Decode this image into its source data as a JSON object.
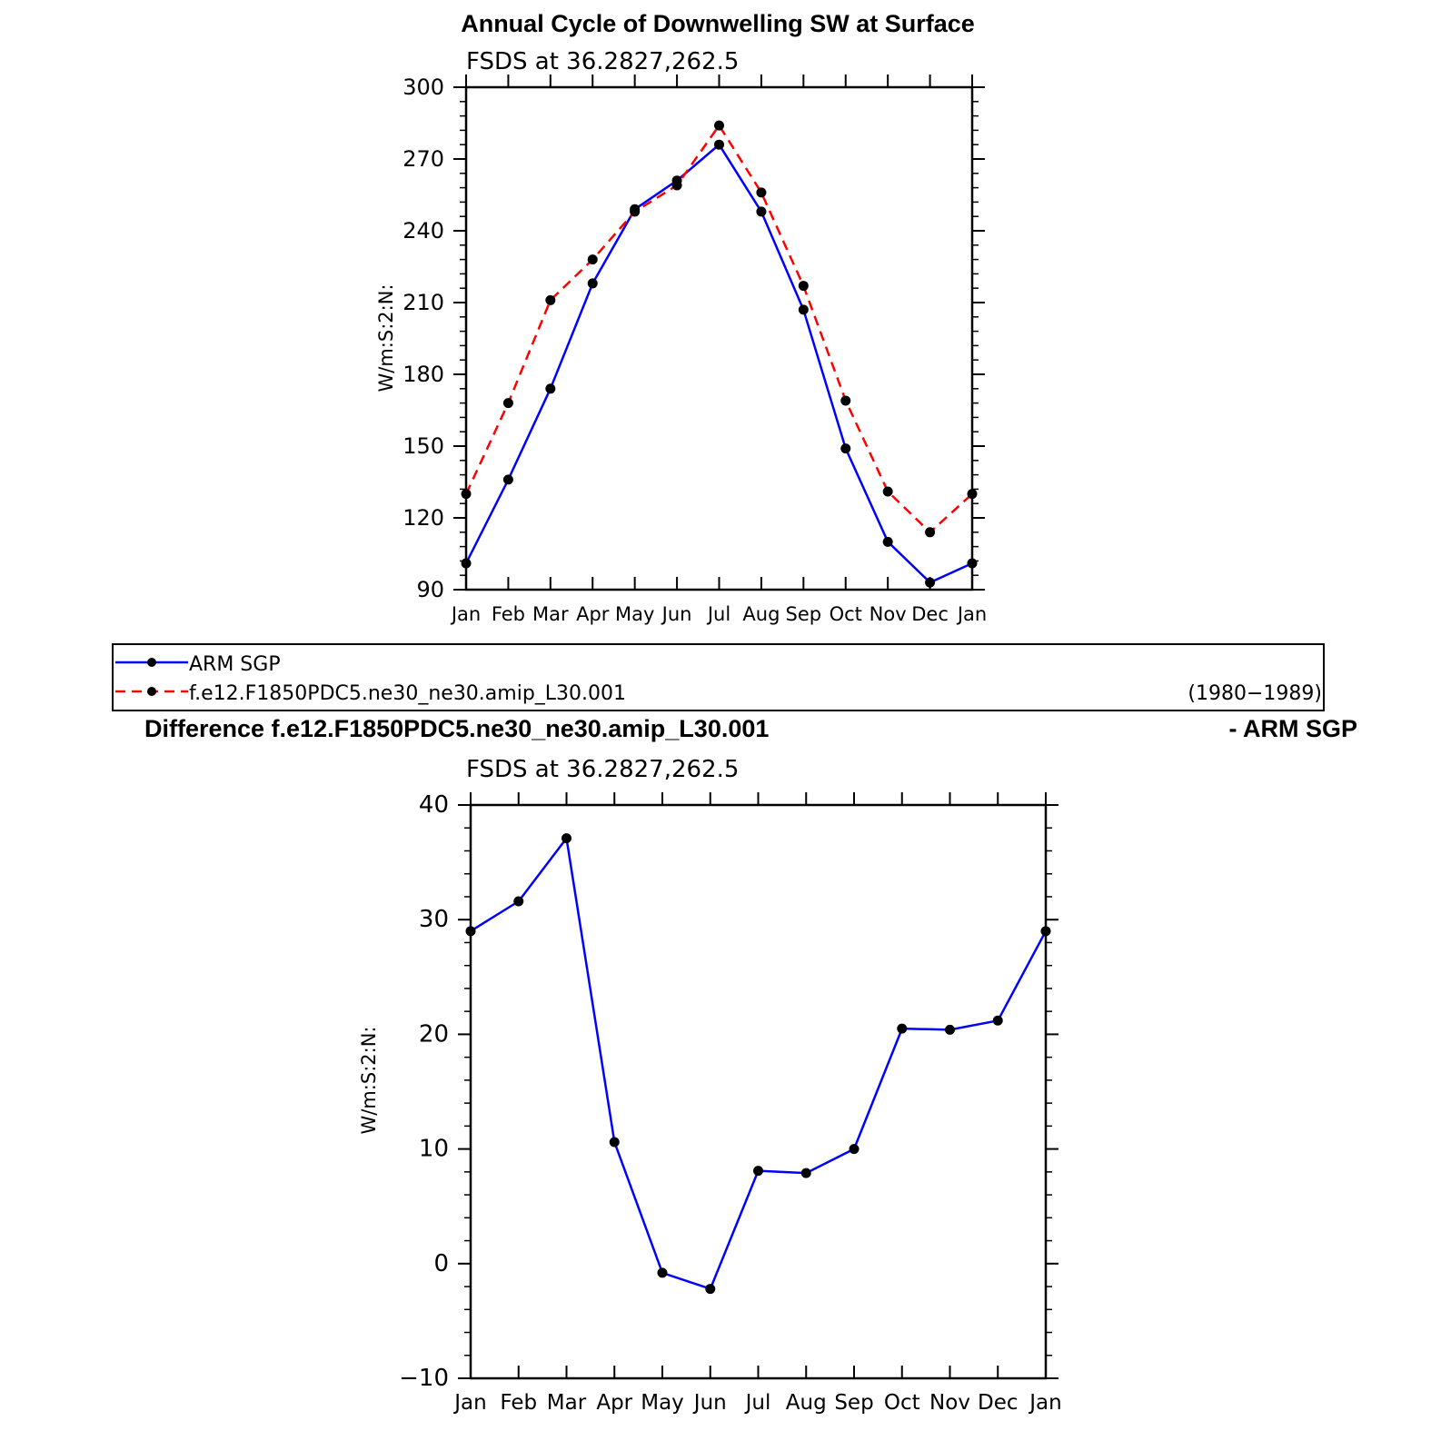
{
  "chart_data": [
    {
      "type": "line",
      "title": "Annual Cycle of Downwelling SW at Surface",
      "subtitle": "FSDS at 36.2827,262.5",
      "xlabel": "",
      "ylabel": "W/m:S:2:N:",
      "categories": [
        "Jan",
        "Feb",
        "Mar",
        "Apr",
        "May",
        "Jun",
        "Jul",
        "Aug",
        "Sep",
        "Oct",
        "Nov",
        "Dec",
        "Jan"
      ],
      "ylim": [
        90,
        300
      ],
      "yticks": [
        "90",
        "120",
        "150",
        "180",
        "210",
        "240",
        "270",
        "300"
      ],
      "grid": false,
      "series": [
        {
          "name": "ARM SGP",
          "color": "#0000ff",
          "dash": "solid",
          "values": [
            101,
            136,
            174,
            218,
            249,
            261,
            276,
            248,
            207,
            149,
            110,
            93,
            101
          ]
        },
        {
          "name": "f.e12.F1850PDC5.ne30_ne30.amip_L30.001",
          "color": "#ff0000",
          "dash": "dashed",
          "values": [
            130,
            168,
            211,
            228,
            248,
            259,
            284,
            256,
            217,
            169,
            131,
            114,
            130
          ]
        }
      ],
      "legend": {
        "placement": "below",
        "entries": [
          "ARM SGP",
          "f.e12.F1850PDC5.ne30_ne30.amip_L30.001"
        ],
        "note": "(1980−1989)"
      }
    },
    {
      "type": "line",
      "title_left": "Difference f.e12.F1850PDC5.ne30_ne30.amip_L30.001",
      "title_right": "- ARM SGP",
      "subtitle": "FSDS at 36.2827,262.5",
      "xlabel": "",
      "ylabel": "W/m:S:2:N:",
      "categories": [
        "Jan",
        "Feb",
        "Mar",
        "Apr",
        "May",
        "Jun",
        "Jul",
        "Aug",
        "Sep",
        "Oct",
        "Nov",
        "Dec",
        "Jan"
      ],
      "ylim": [
        -10,
        40
      ],
      "yticks": [
        "−10",
        "0",
        "10",
        "20",
        "30",
        "40"
      ],
      "grid": false,
      "series": [
        {
          "name": "",
          "color": "#0000ff",
          "dash": "solid",
          "values": [
            29,
            31.6,
            37.1,
            10.6,
            -0.8,
            -2.2,
            8.1,
            7.9,
            10,
            20.5,
            20.4,
            21.2,
            29
          ]
        }
      ]
    }
  ]
}
